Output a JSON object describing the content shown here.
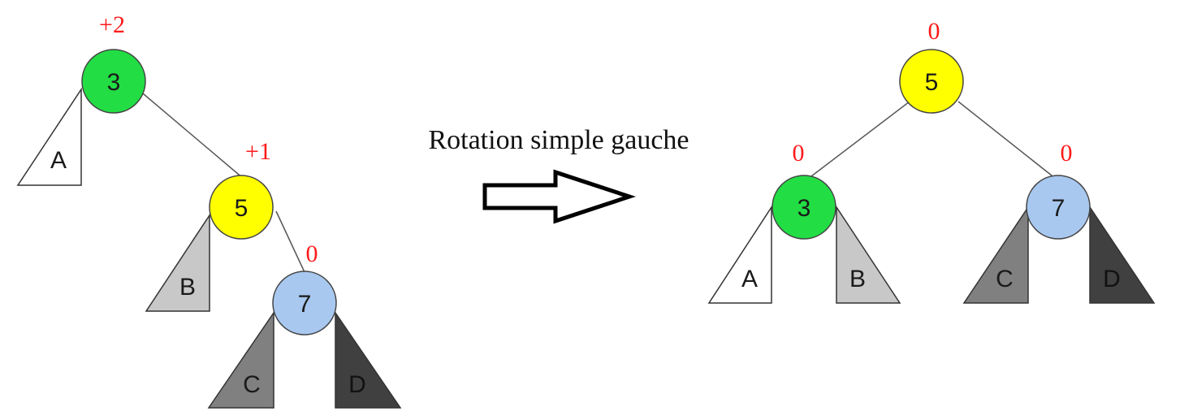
{
  "caption": "Rotation simple gauche",
  "colors": {
    "node_3": "#22dd44",
    "node_5": "#ffff00",
    "node_7": "#a8c8f0",
    "leaf_A": "#ffffff",
    "leaf_B": "#c8c8c8",
    "leaf_C": "#808080",
    "leaf_D": "#404040",
    "balance": "#ff1a1a"
  },
  "before": {
    "nodes": [
      {
        "value": "3",
        "balance": "+2"
      },
      {
        "value": "5",
        "balance": "+1"
      },
      {
        "value": "7",
        "balance": "0"
      }
    ],
    "leaves": [
      "A",
      "B",
      "C",
      "D"
    ]
  },
  "after": {
    "nodes": [
      {
        "value": "5",
        "balance": "0"
      },
      {
        "value": "3",
        "balance": "0"
      },
      {
        "value": "7",
        "balance": "0"
      }
    ],
    "leaves": [
      "A",
      "B",
      "C",
      "D"
    ]
  }
}
